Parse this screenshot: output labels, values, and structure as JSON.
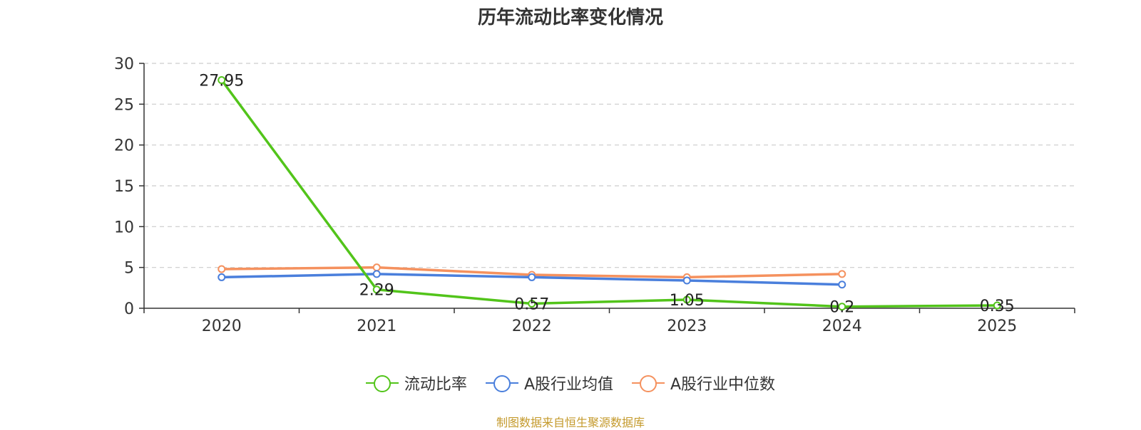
{
  "chart_data": {
    "type": "line",
    "title": "历年流动比率变化情况",
    "categories": [
      "2020",
      "2021",
      "2022",
      "2023",
      "2024",
      "2025"
    ],
    "ylim": [
      0,
      30
    ],
    "yticks": [
      "0",
      "5",
      "10",
      "15",
      "20",
      "25",
      "30"
    ],
    "grid": true,
    "legend_position": "bottom",
    "series": [
      {
        "name": "流动比率",
        "color": "#52c41a",
        "values": [
          27.95,
          2.29,
          0.57,
          1.05,
          0.2,
          0.35
        ],
        "data_labels": [
          "27.95",
          "2.29",
          "0.57",
          "1.05",
          "0.2",
          "0.35"
        ]
      },
      {
        "name": "A股行业均值",
        "color": "#4a7fdc",
        "values": [
          3.8,
          4.2,
          3.8,
          3.4,
          2.9,
          null
        ]
      },
      {
        "name": "A股行业中位数",
        "color": "#f5915e",
        "values": [
          4.8,
          5.0,
          4.1,
          3.8,
          4.2,
          null
        ]
      }
    ]
  },
  "source_note": "制图数据来自恒生聚源数据库"
}
